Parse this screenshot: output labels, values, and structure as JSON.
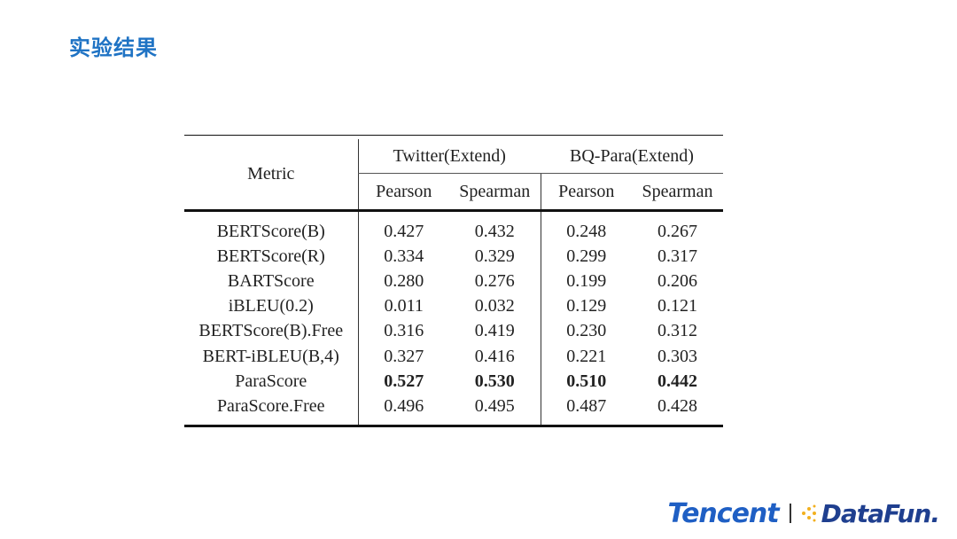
{
  "slide": {
    "title": "实验结果"
  },
  "table": {
    "metric_header": "Metric",
    "groups": [
      "Twitter(Extend)",
      "BQ-Para(Extend)"
    ],
    "subheaders": [
      "Pearson",
      "Spearman",
      "Pearson",
      "Spearman"
    ],
    "rows": [
      {
        "metric": "BERTScore(B)",
        "values": [
          "0.427",
          "0.432",
          "0.248",
          "0.267"
        ],
        "bold": false
      },
      {
        "metric": "BERTScore(R)",
        "values": [
          "0.334",
          "0.329",
          "0.299",
          "0.317"
        ],
        "bold": false
      },
      {
        "metric": "BARTScore",
        "values": [
          "0.280",
          "0.276",
          "0.199",
          "0.206"
        ],
        "bold": false
      },
      {
        "metric": "iBLEU(0.2)",
        "values": [
          "0.011",
          "0.032",
          "0.129",
          "0.121"
        ],
        "bold": false
      },
      {
        "metric": "BERTScore(B).Free",
        "values": [
          "0.316",
          "0.419",
          "0.230",
          "0.312"
        ],
        "bold": false
      },
      {
        "metric": "BERT-iBLEU(B,4)",
        "values": [
          "0.327",
          "0.416",
          "0.221",
          "0.303"
        ],
        "bold": false
      },
      {
        "metric": "ParaScore",
        "values": [
          "0.527",
          "0.530",
          "0.510",
          "0.442"
        ],
        "bold": true
      },
      {
        "metric": "ParaScore.Free",
        "values": [
          "0.496",
          "0.495",
          "0.487",
          "0.428"
        ],
        "bold": false
      }
    ]
  },
  "logos": {
    "tencent": "Tencent",
    "datafun": "DataFun.",
    "tencent_color": "#1f5fc4",
    "datafun_color": "#1f3f8f",
    "datafun_dots_color": "#f2b01e"
  },
  "colors": {
    "title": "#1f73c4"
  }
}
